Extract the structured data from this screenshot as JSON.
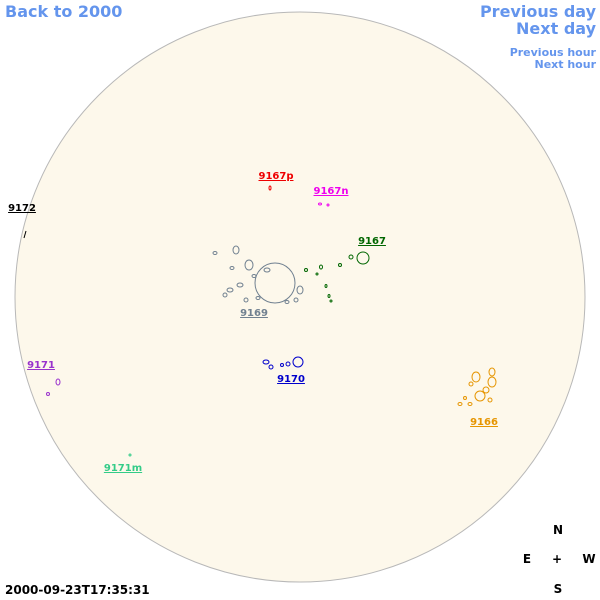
{
  "nav": {
    "back": "Back to 2000",
    "previous_day": "Previous day",
    "next_day": "Next day",
    "previous_hour": "Previous hour",
    "next_hour": "Next hour"
  },
  "regions": [
    {
      "label": "9167p",
      "color": "#ee0000"
    },
    {
      "label": "9167n",
      "color": "#ee00ee"
    },
    {
      "label": "9172",
      "color": "#000000"
    },
    {
      "label": "9167",
      "color": "#006600"
    },
    {
      "label": "9169",
      "color": "#708090"
    },
    {
      "label": "9171",
      "color": "#9932cc"
    },
    {
      "label": "9170",
      "color": "#0000cc"
    },
    {
      "label": "9166",
      "color": "#e69500"
    },
    {
      "label": "9171m",
      "color": "#33cc88"
    }
  ],
  "timestamp": "2000-09-23T17:35:31",
  "compass": {
    "north": "N",
    "east": "E",
    "center": "+",
    "west": "W",
    "south": "S"
  }
}
